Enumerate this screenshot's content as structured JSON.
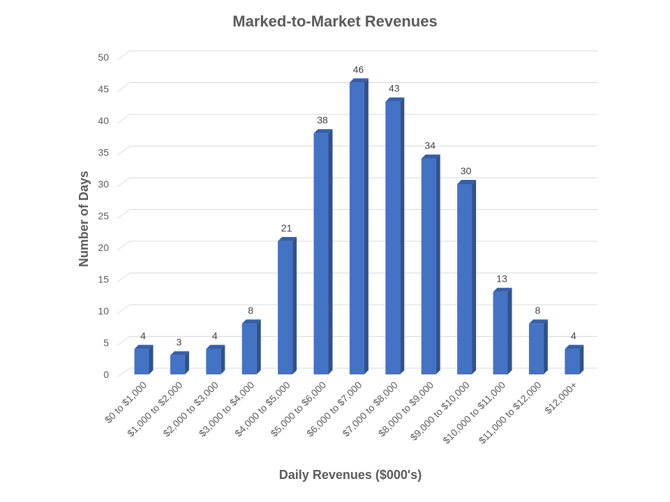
{
  "chart_data": {
    "type": "bar",
    "title": "Marked-to-Market Revenues",
    "xlabel": "Daily Revenues ($000's)",
    "ylabel": "Number of Days",
    "categories": [
      "$0 to $1,000",
      "$1,000 to $2,000",
      "$2,000 to $3,000",
      "$3,000 to $4,000",
      "$4,000 to $5,000",
      "$5,000 to $6,000",
      "$6,000 to $7,000",
      "$7,000 to $8,000",
      "$8,000 to $9,000",
      "$9,000 to $10,000",
      "$10,000 to $11,000",
      "$11,000 to $12,000",
      "$12,000+"
    ],
    "values": [
      4,
      3,
      4,
      8,
      21,
      38,
      46,
      43,
      34,
      30,
      13,
      8,
      4
    ],
    "ylim": [
      0,
      50
    ],
    "yticks": [
      "0",
      "5",
      "10",
      "15",
      "20",
      "25",
      "30",
      "35",
      "40",
      "45",
      "50"
    ],
    "grid": true,
    "legend": "none",
    "bar_style": "3d",
    "colors": {
      "bar_front": "#4472C4",
      "bar_side": "#2F528F",
      "bar_top": "#3A5FA0",
      "grid": "#D9D9D9",
      "text": "#595959"
    }
  }
}
